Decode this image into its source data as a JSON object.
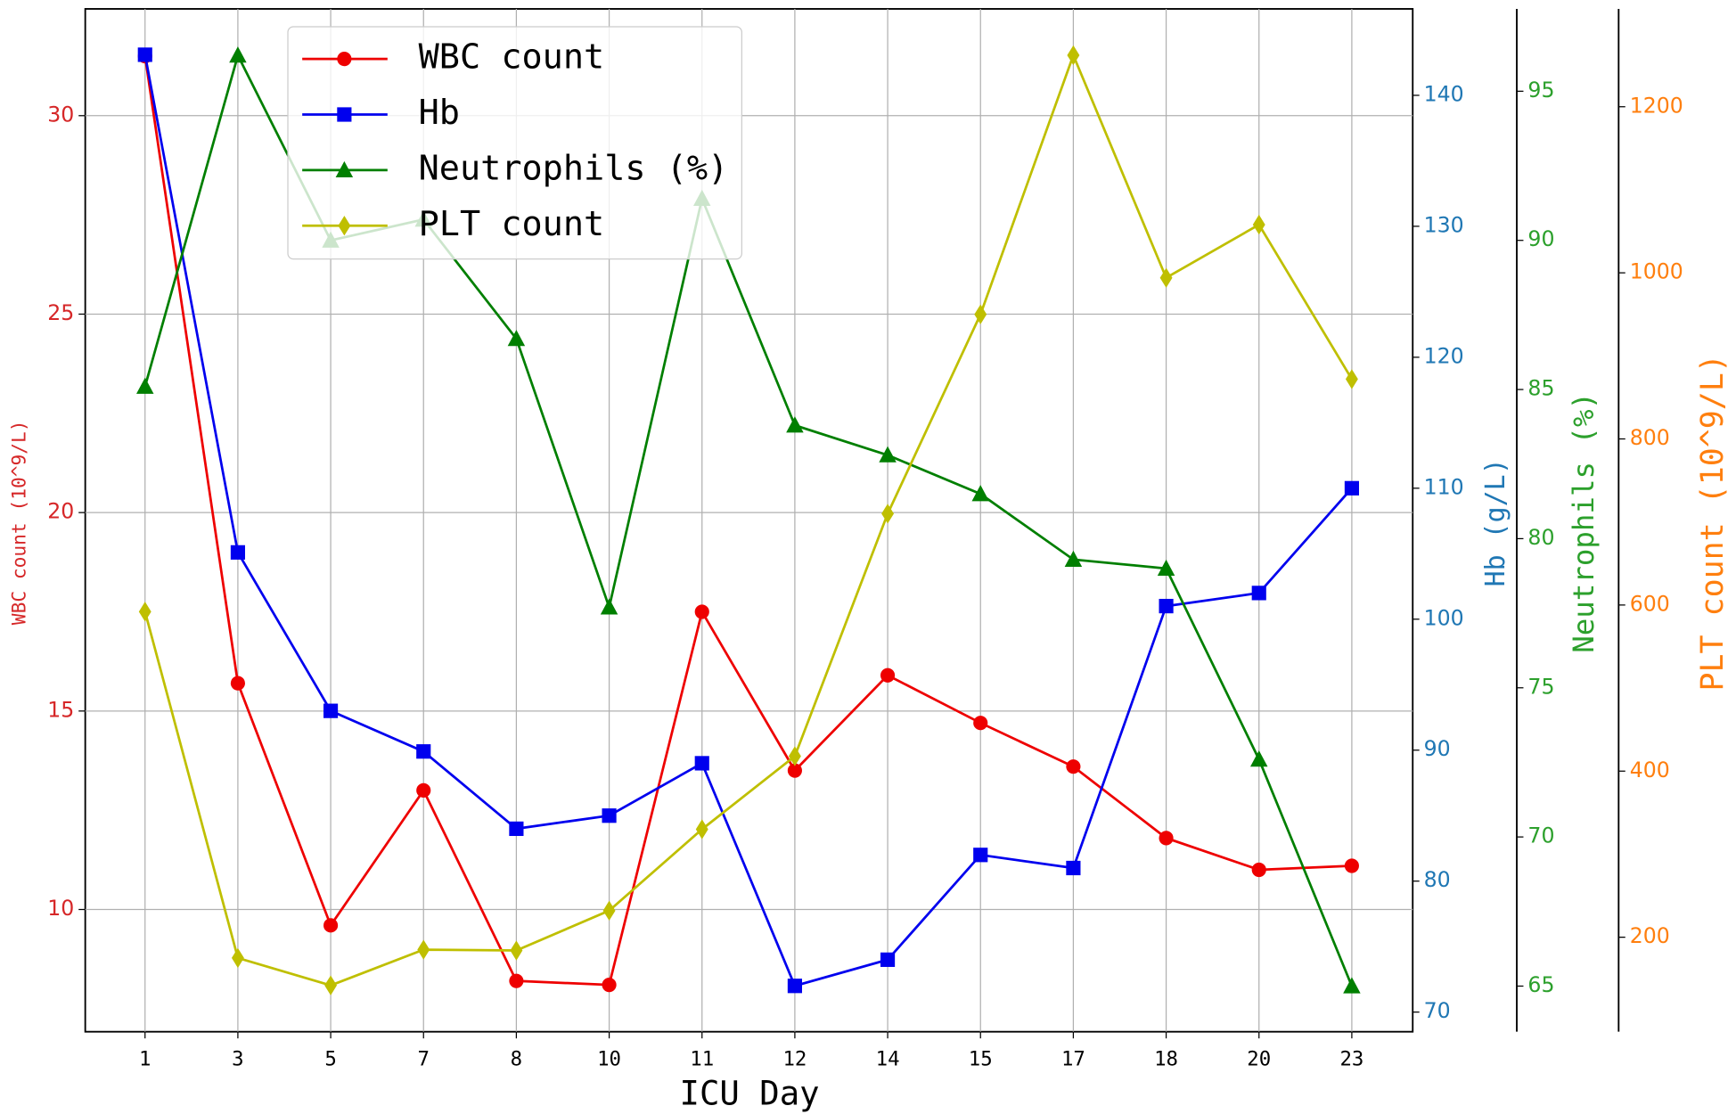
{
  "chart_data": {
    "type": "line",
    "xlabel": "ICU Day",
    "categories": [
      "1",
      "3",
      "5",
      "7",
      "8",
      "10",
      "11",
      "12",
      "14",
      "15",
      "17",
      "18",
      "20",
      "23"
    ],
    "grid": true,
    "legend": "upper center-left",
    "ylabel": "WBC count (10^9/L)",
    "ycolor": "#d62728",
    "ylim": [
      6.92,
      32.69
    ],
    "yticks": [
      10,
      15,
      20,
      25,
      30
    ],
    "y2label": "Hb (g/L)",
    "y2color": "#1f77b4",
    "y2lim": [
      68.5,
      146.6
    ],
    "y2ticks": [
      70,
      80,
      90,
      100,
      110,
      120,
      130,
      140
    ],
    "y3label": "Neutrophils (%)",
    "y3color": "#2ca02c",
    "y3lim": [
      63.47,
      97.76
    ],
    "y3ticks": [
      65,
      70,
      75,
      80,
      85,
      90,
      95
    ],
    "y4label": "PLT count (10^9/L)",
    "y4color": "#ff7f0e",
    "y4lim": [
      86.2,
      1317.8
    ],
    "y4ticks": [
      200,
      400,
      600,
      800,
      1000,
      1200
    ],
    "series": [
      {
        "name": "WBC count",
        "color": "#ee0000",
        "marker": "circle",
        "axis": "y",
        "values": [
          31.5,
          15.7,
          9.6,
          13.0,
          8.2,
          8.1,
          17.5,
          13.5,
          15.9,
          14.7,
          13.6,
          11.8,
          11.0,
          11.1
        ]
      },
      {
        "name": "Hb",
        "color": "#0000ee",
        "marker": "square",
        "axis": "y2",
        "values": [
          143.1,
          105.1,
          93.0,
          89.9,
          84.0,
          85.0,
          89.0,
          72.0,
          74.0,
          82.0,
          81.0,
          101.0,
          102.0,
          110.0
        ]
      },
      {
        "name": "Neutrophils (%)",
        "color": "#007f00",
        "marker": "triangle",
        "axis": "y3",
        "values": [
          85.1,
          96.2,
          90.0,
          90.7,
          86.7,
          77.7,
          91.4,
          83.8,
          82.8,
          81.5,
          79.3,
          79.0,
          72.6,
          65.0
        ]
      },
      {
        "name": "PLT count",
        "color": "#bfbf00",
        "marker": "diamond",
        "axis": "y4",
        "values": [
          592,
          175,
          142,
          185,
          184,
          232,
          330,
          418,
          710,
          950,
          1262,
          994,
          1058,
          872
        ]
      }
    ]
  }
}
